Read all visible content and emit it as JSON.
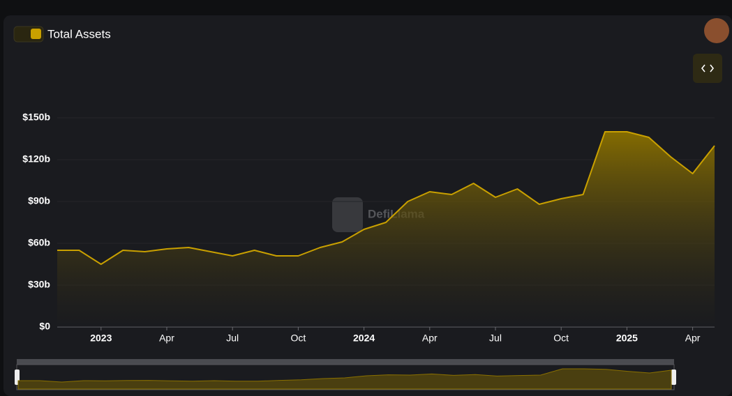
{
  "chart_data": {
    "type": "area",
    "legend": "Total Assets",
    "watermark": "DefiLlama",
    "color": "#c9a000",
    "x": [
      "2022-11",
      "2022-12",
      "2023-01",
      "2023-02",
      "2023-03",
      "2023-04",
      "2023-05",
      "2023-06",
      "2023-07",
      "2023-08",
      "2023-09",
      "2023-10",
      "2023-11",
      "2023-12",
      "2024-01",
      "2024-02",
      "2024-03",
      "2024-04",
      "2024-05",
      "2024-06",
      "2024-07",
      "2024-08",
      "2024-09",
      "2024-10",
      "2024-11",
      "2024-12",
      "2025-01",
      "2025-02",
      "2025-03",
      "2025-04",
      "2025-05"
    ],
    "series": [
      {
        "name": "Total Assets",
        "color": "#c9a000",
        "values": [
          55,
          55,
          45,
          55,
          54,
          56,
          57,
          54,
          51,
          55,
          51,
          51,
          57,
          61,
          70,
          75,
          90,
          97,
          95,
          103,
          93,
          99,
          88,
          92,
          95,
          140,
          140,
          136,
          122,
          110,
          130
        ]
      }
    ],
    "xlim": [
      "2022-11",
      "2025-05"
    ],
    "xticks": [
      {
        "value": "2023-01",
        "label": "2023"
      },
      {
        "value": "2023-04",
        "label": "Apr"
      },
      {
        "value": "2023-07",
        "label": "Jul"
      },
      {
        "value": "2023-10",
        "label": "Oct"
      },
      {
        "value": "2024-01",
        "label": "2024"
      },
      {
        "value": "2024-04",
        "label": "Apr"
      },
      {
        "value": "2024-07",
        "label": "Jul"
      },
      {
        "value": "2024-10",
        "label": "Oct"
      },
      {
        "value": "2025-01",
        "label": "2025"
      },
      {
        "value": "2025-04",
        "label": "Apr"
      }
    ],
    "ylim": [
      0,
      150
    ],
    "yticks": [
      {
        "value": 0,
        "label": "$0"
      },
      {
        "value": 30,
        "label": "$30b"
      },
      {
        "value": 60,
        "label": "$60b"
      },
      {
        "value": 90,
        "label": "$90b"
      },
      {
        "value": 120,
        "label": "$120b"
      },
      {
        "value": 150,
        "label": "$150b"
      }
    ],
    "grid": true
  }
}
